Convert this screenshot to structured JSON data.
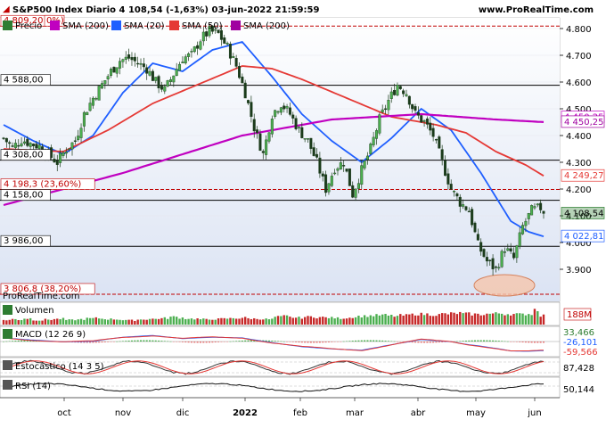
{
  "header": {
    "title": "S&P500 Index Diario 4 108,54 (-1,63%) 03-jun-2022 21:59:59",
    "site": "www.ProRealTime.com"
  },
  "legend": [
    {
      "label": "Precio",
      "color": "#2e7d32"
    },
    {
      "label": "SMA (200)",
      "color": "#c000c0"
    },
    {
      "label": "SMA (20)",
      "color": "#1f5fff"
    },
    {
      "label": "SMA (50)",
      "color": "#e53935"
    },
    {
      "label": "SMA (200)",
      "color": "#a000a0"
    }
  ],
  "watermark": "ProRealTime.com",
  "chart_data": [
    {
      "type": "candlestick",
      "title": "S&P500 Index Diario",
      "x": [
        "oct",
        "nov",
        "dic",
        "2022",
        "feb",
        "mar",
        "abr",
        "may",
        "jun"
      ],
      "ylim": [
        3780,
        4840
      ],
      "yticks": [
        3900,
        4000,
        4100,
        4200,
        4300,
        4400,
        4500,
        4600,
        4700,
        4800
      ],
      "ytick_labels": [
        "3.900",
        "4.000",
        "4.100",
        "4.200",
        "4.300",
        "4.400",
        "4.500",
        "4.600",
        "4.700",
        "4.800"
      ],
      "close_anchors": [
        {
          "d": 0,
          "v": 4390
        },
        {
          "d": 3,
          "v": 4355
        },
        {
          "d": 6,
          "v": 4385
        },
        {
          "d": 9,
          "v": 4370
        },
        {
          "d": 12,
          "v": 4360
        },
        {
          "d": 15,
          "v": 4330
        },
        {
          "d": 18,
          "v": 4300
        },
        {
          "d": 21,
          "v": 4350
        },
        {
          "d": 24,
          "v": 4380
        },
        {
          "d": 27,
          "v": 4480
        },
        {
          "d": 30,
          "v": 4540
        },
        {
          "d": 33,
          "v": 4590
        },
        {
          "d": 36,
          "v": 4640
        },
        {
          "d": 39,
          "v": 4680
        },
        {
          "d": 42,
          "v": 4690
        },
        {
          "d": 45,
          "v": 4670
        },
        {
          "d": 48,
          "v": 4650
        },
        {
          "d": 51,
          "v": 4600
        },
        {
          "d": 54,
          "v": 4570
        },
        {
          "d": 57,
          "v": 4630
        },
        {
          "d": 60,
          "v": 4690
        },
        {
          "d": 63,
          "v": 4700
        },
        {
          "d": 66,
          "v": 4760
        },
        {
          "d": 69,
          "v": 4790
        },
        {
          "d": 72,
          "v": 4780
        },
        {
          "d": 75,
          "v": 4730
        },
        {
          "d": 78,
          "v": 4660
        },
        {
          "d": 81,
          "v": 4560
        },
        {
          "d": 84,
          "v": 4430
        },
        {
          "d": 87,
          "v": 4330
        },
        {
          "d": 90,
          "v": 4480
        },
        {
          "d": 93,
          "v": 4520
        },
        {
          "d": 96,
          "v": 4480
        },
        {
          "d": 99,
          "v": 4420
        },
        {
          "d": 102,
          "v": 4380
        },
        {
          "d": 105,
          "v": 4300
        },
        {
          "d": 108,
          "v": 4200
        },
        {
          "d": 111,
          "v": 4280
        },
        {
          "d": 114,
          "v": 4300
        },
        {
          "d": 117,
          "v": 4180
        },
        {
          "d": 120,
          "v": 4270
        },
        {
          "d": 123,
          "v": 4350
        },
        {
          "d": 126,
          "v": 4460
        },
        {
          "d": 129,
          "v": 4530
        },
        {
          "d": 132,
          "v": 4590
        },
        {
          "d": 135,
          "v": 4560
        },
        {
          "d": 138,
          "v": 4480
        },
        {
          "d": 141,
          "v": 4450
        },
        {
          "d": 144,
          "v": 4400
        },
        {
          "d": 147,
          "v": 4300
        },
        {
          "d": 150,
          "v": 4200
        },
        {
          "d": 153,
          "v": 4150
        },
        {
          "d": 156,
          "v": 4120
        },
        {
          "d": 159,
          "v": 3990
        },
        {
          "d": 162,
          "v": 3930
        },
        {
          "d": 165,
          "v": 3900
        },
        {
          "d": 168,
          "v": 3980
        },
        {
          "d": 171,
          "v": 3940
        },
        {
          "d": 174,
          "v": 4060
        },
        {
          "d": 177,
          "v": 4120
        },
        {
          "d": 180,
          "v": 4130
        },
        {
          "d": 181,
          "v": 4108.54
        }
      ],
      "series": [
        {
          "name": "SMA (20)",
          "color": "#1f5fff",
          "anchors": [
            {
              "d": 0,
              "v": 4440
            },
            {
              "d": 10,
              "v": 4380
            },
            {
              "d": 20,
              "v": 4330
            },
            {
              "d": 30,
              "v": 4400
            },
            {
              "d": 40,
              "v": 4560
            },
            {
              "d": 50,
              "v": 4670
            },
            {
              "d": 60,
              "v": 4640
            },
            {
              "d": 70,
              "v": 4720
            },
            {
              "d": 80,
              "v": 4750
            },
            {
              "d": 90,
              "v": 4620
            },
            {
              "d": 100,
              "v": 4480
            },
            {
              "d": 110,
              "v": 4380
            },
            {
              "d": 120,
              "v": 4300
            },
            {
              "d": 130,
              "v": 4390
            },
            {
              "d": 140,
              "v": 4500
            },
            {
              "d": 150,
              "v": 4420
            },
            {
              "d": 160,
              "v": 4260
            },
            {
              "d": 170,
              "v": 4080
            },
            {
              "d": 176,
              "v": 4040
            },
            {
              "d": 181,
              "v": 4022.81
            }
          ]
        },
        {
          "name": "SMA (50)",
          "color": "#e53935",
          "anchors": [
            {
              "d": 0,
              "v": 4350
            },
            {
              "d": 20,
              "v": 4340
            },
            {
              "d": 35,
              "v": 4420
            },
            {
              "d": 50,
              "v": 4520
            },
            {
              "d": 65,
              "v": 4590
            },
            {
              "d": 80,
              "v": 4660
            },
            {
              "d": 90,
              "v": 4650
            },
            {
              "d": 100,
              "v": 4610
            },
            {
              "d": 115,
              "v": 4540
            },
            {
              "d": 130,
              "v": 4470
            },
            {
              "d": 145,
              "v": 4440
            },
            {
              "d": 155,
              "v": 4410
            },
            {
              "d": 165,
              "v": 4340
            },
            {
              "d": 175,
              "v": 4290
            },
            {
              "d": 181,
              "v": 4249.27
            }
          ]
        },
        {
          "name": "SMA (200)",
          "color": "#c000c0",
          "anchors": [
            {
              "d": 0,
              "v": 4140
            },
            {
              "d": 40,
              "v": 4260
            },
            {
              "d": 80,
              "v": 4400
            },
            {
              "d": 110,
              "v": 4460
            },
            {
              "d": 140,
              "v": 4480
            },
            {
              "d": 165,
              "v": 4460
            },
            {
              "d": 181,
              "v": 4450.25
            }
          ]
        }
      ],
      "last_values": {
        "price": "4 108,54",
        "sma20": "4 022,81",
        "sma50": "4 249,27",
        "sma200a": "4 450,25",
        "sma200b": "4 450,25"
      },
      "levels": [
        {
          "label": "4 809,20",
          "value": 4809.2,
          "style": "dashed",
          "color": "#c00000"
        },
        {
          "label": "4 588,00",
          "value": 4588,
          "style": "solid",
          "color": "#000000"
        },
        {
          "label": "4 308,00",
          "value": 4308,
          "style": "solid",
          "color": "#000000"
        },
        {
          "label": "4 198,3 (23,60%)",
          "value": 4198.3,
          "style": "dashed",
          "color": "#c00000"
        },
        {
          "label": "4 158,00",
          "value": 4158,
          "style": "solid",
          "color": "#000000"
        },
        {
          "label": "3 986,00",
          "value": 3986,
          "style": "solid",
          "color": "#000000"
        },
        {
          "label": "3 806,8 (38,20%)",
          "value": 3806.8,
          "style": "dashed",
          "color": "#c00000"
        }
      ],
      "fib0_label": "0%)"
    },
    {
      "type": "bar",
      "title": "Volumen",
      "last_value": "188M",
      "values_relative": [
        0.3,
        0.35,
        0.32,
        0.4,
        0.3,
        0.28,
        0.33,
        0.36,
        0.38,
        0.3,
        0.32,
        0.35,
        0.4,
        0.42,
        0.38,
        0.36,
        0.34,
        0.3,
        0.28,
        0.33,
        0.35,
        0.37,
        0.4,
        0.42,
        0.5,
        0.45,
        0.4,
        0.38,
        0.35,
        0.33,
        0.36,
        0.38,
        0.4,
        0.42,
        0.45,
        0.4,
        0.38,
        0.36,
        0.35,
        0.5,
        0.55,
        0.48,
        0.45,
        0.5,
        0.52,
        0.48,
        0.46,
        0.44,
        0.42,
        0.45,
        0.5,
        0.55,
        0.58,
        0.6,
        0.62,
        0.58,
        0.56,
        0.6,
        0.65,
        0.7,
        0.68,
        0.66,
        0.64,
        0.7,
        0.72,
        0.75,
        0.7,
        0.68,
        0.66,
        0.7,
        0.72,
        0.74,
        0.7,
        0.68,
        0.66,
        0.7,
        1.0,
        0.6
      ]
    },
    {
      "type": "line",
      "title": "MACD (12 26 9)",
      "last_values": [
        "33,466",
        "-26,101",
        "-59,566"
      ],
      "ylim": [
        -150,
        100
      ]
    },
    {
      "type": "line",
      "title": "Estocástico (14 3 5)",
      "last_values": [
        "87,428"
      ],
      "ylim": [
        0,
        100
      ]
    },
    {
      "type": "line",
      "title": "RSI (14)",
      "last_values": [
        "50,144"
      ],
      "ylim": [
        0,
        100
      ]
    }
  ]
}
